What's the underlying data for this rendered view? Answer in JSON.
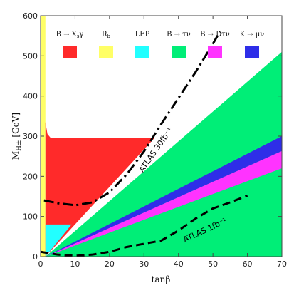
{
  "chart_data": {
    "type": "area",
    "title": "",
    "xlabel": "tanβ",
    "ylabel": "M_{H±} [GeV]",
    "xlim": [
      0,
      70
    ],
    "ylim": [
      0,
      600
    ],
    "x_ticks": [
      0,
      10,
      20,
      30,
      40,
      50,
      60,
      70
    ],
    "y_ticks": [
      0,
      100,
      200,
      300,
      400,
      500,
      600
    ],
    "grid": false,
    "legend": {
      "placement": "top",
      "entries": [
        {
          "label": "B → X_sγ",
          "color": "#ff2a2a"
        },
        {
          "label": "R_b",
          "color": "#ffff66"
        },
        {
          "label": "LEP",
          "color": "#22ffff"
        },
        {
          "label": "B → τν",
          "color": "#00ee77"
        },
        {
          "label": "B → Dτν",
          "color": "#ff33ff"
        },
        {
          "label": "K → μν",
          "color": "#2e2ee8"
        }
      ]
    },
    "regions": [
      {
        "name": "R_b",
        "color": "#ffff66",
        "points": [
          [
            0,
            0
          ],
          [
            1.4,
            0
          ],
          [
            1.4,
            600
          ],
          [
            0,
            600
          ]
        ]
      },
      {
        "name": "B → X_sγ",
        "color": "#ff2a2a",
        "points": [
          [
            1.4,
            0
          ],
          [
            1.4,
            335
          ],
          [
            2.0,
            305
          ],
          [
            3.0,
            295
          ],
          [
            33,
            295
          ],
          [
            1.4,
            0
          ]
        ]
      },
      {
        "name": "LEP",
        "color": "#22ffff",
        "points": [
          [
            1.4,
            0
          ],
          [
            1.4,
            80
          ],
          [
            9,
            80
          ],
          [
            1.4,
            0
          ]
        ]
      },
      {
        "name": "B → τν",
        "color": "#00ee77",
        "points": [
          [
            1.4,
            0
          ],
          [
            70,
            0
          ],
          [
            70,
            510
          ],
          [
            1.4,
            0
          ]
        ]
      },
      {
        "name": "K → μν",
        "color": "#2e2ee8",
        "points": [
          [
            1.4,
            0
          ],
          [
            70,
            300
          ],
          [
            70,
            263
          ],
          [
            1.4,
            0
          ]
        ]
      },
      {
        "name": "B → Dτν",
        "color": "#ff33ff",
        "points": [
          [
            1.4,
            0
          ],
          [
            70,
            263
          ],
          [
            70,
            220
          ],
          [
            1.4,
            0
          ]
        ]
      }
    ],
    "series": [
      {
        "name": "ATLAS 30fb⁻¹",
        "style": "dash-dot",
        "points": [
          [
            1,
            140
          ],
          [
            5,
            133
          ],
          [
            10,
            128
          ],
          [
            15,
            135
          ],
          [
            20,
            160
          ],
          [
            25,
            205
          ],
          [
            30,
            262
          ],
          [
            35,
            330
          ],
          [
            40,
            395
          ],
          [
            45,
            460
          ],
          [
            50,
            530
          ],
          [
            52,
            560
          ]
        ]
      },
      {
        "name": "ATLAS 1fb⁻¹",
        "style": "dashed",
        "points": [
          [
            0,
            12
          ],
          [
            5,
            5
          ],
          [
            10,
            2
          ],
          [
            15,
            5
          ],
          [
            20,
            12
          ],
          [
            25,
            24
          ],
          [
            30,
            32
          ],
          [
            35,
            40
          ],
          [
            40,
            65
          ],
          [
            45,
            95
          ],
          [
            50,
            120
          ],
          [
            55,
            135
          ],
          [
            60,
            152
          ]
        ]
      }
    ],
    "annotations": [
      {
        "text": "ATLAS 30fb⁻¹",
        "at": [
          34,
          262
        ],
        "angle_deg": -55
      },
      {
        "text": "ATLAS 1fb⁻¹",
        "at": [
          48,
          60
        ],
        "angle_deg": -25
      }
    ]
  }
}
